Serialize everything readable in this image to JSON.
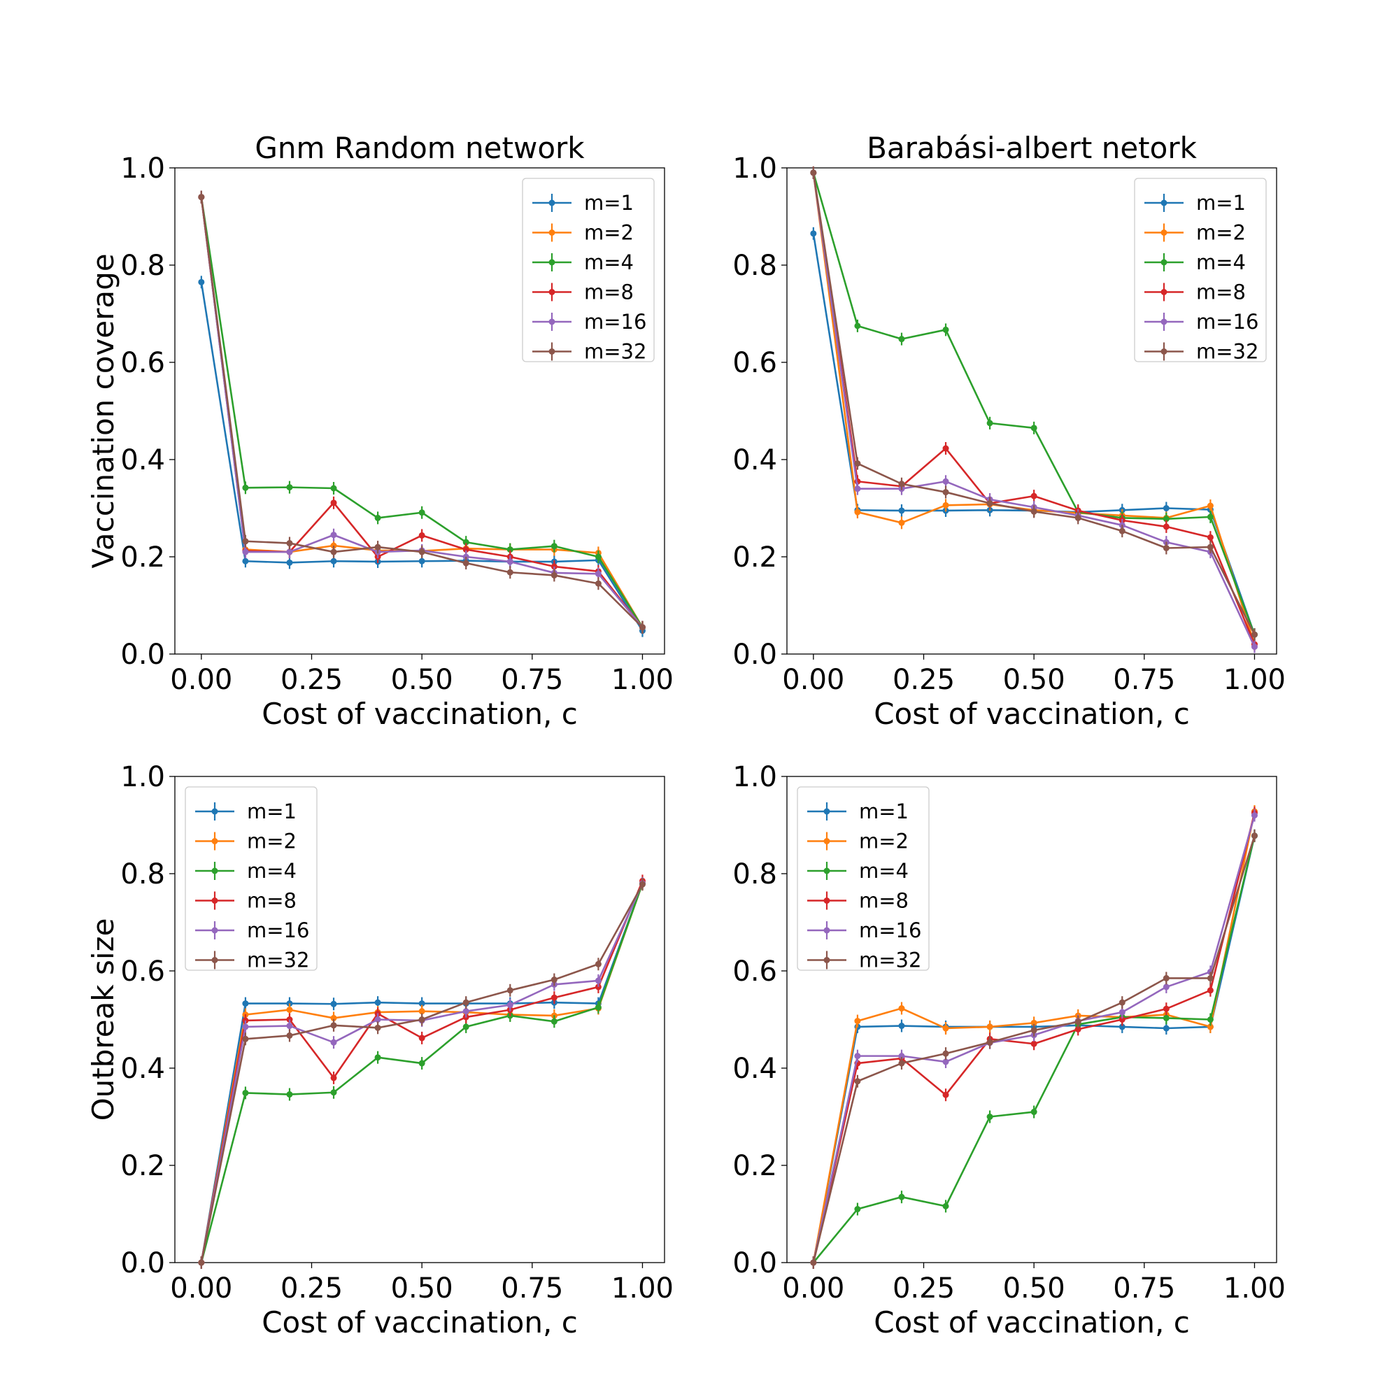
{
  "chart_data": [
    {
      "type": "line",
      "title": "Gnm Random network",
      "xlabel": "Cost of vaccination, c",
      "ylabel": "Vaccination coverage",
      "xlim": [
        -0.06,
        1.05
      ],
      "ylim": [
        0.0,
        1.0
      ],
      "xticks": [
        "0.00",
        "0.25",
        "0.50",
        "0.75",
        "1.00"
      ],
      "yticks": [
        "0.0",
        "0.2",
        "0.4",
        "0.6",
        "0.8",
        "1.0"
      ],
      "legend_position": "upper right",
      "x": [
        0.0,
        0.1,
        0.2,
        0.3,
        0.4,
        0.5,
        0.6,
        0.7,
        0.8,
        0.9,
        1.0
      ],
      "series": [
        {
          "name": "m=1",
          "color": "#1f77b4",
          "values": [
            0.765,
            0.191,
            0.188,
            0.191,
            0.19,
            0.191,
            0.192,
            0.19,
            0.19,
            0.193,
            0.048
          ]
        },
        {
          "name": "m=2",
          "color": "#ff7f0e",
          "values": [
            0.94,
            0.215,
            0.21,
            0.223,
            0.213,
            0.212,
            0.217,
            0.215,
            0.215,
            0.208,
            0.055
          ]
        },
        {
          "name": "m=4",
          "color": "#2ca02c",
          "values": [
            0.94,
            0.342,
            0.343,
            0.341,
            0.28,
            0.291,
            0.23,
            0.215,
            0.222,
            0.2,
            0.055
          ]
        },
        {
          "name": "m=8",
          "color": "#d62728",
          "values": [
            0.94,
            0.212,
            0.21,
            0.311,
            0.2,
            0.244,
            0.215,
            0.2,
            0.18,
            0.17,
            0.055
          ]
        },
        {
          "name": "m=16",
          "color": "#9467bd",
          "values": [
            0.94,
            0.21,
            0.21,
            0.245,
            0.21,
            0.213,
            0.2,
            0.19,
            0.167,
            0.165,
            0.055
          ]
        },
        {
          "name": "m=32",
          "color": "#8c564b",
          "values": [
            0.94,
            0.232,
            0.228,
            0.21,
            0.22,
            0.21,
            0.187,
            0.168,
            0.162,
            0.145,
            0.055
          ]
        }
      ]
    },
    {
      "type": "line",
      "title": "Barabási-albert netork",
      "xlabel": "Cost of vaccination, c",
      "ylabel": "",
      "xlim": [
        -0.06,
        1.05
      ],
      "ylim": [
        0.0,
        1.0
      ],
      "xticks": [
        "0.00",
        "0.25",
        "0.50",
        "0.75",
        "1.00"
      ],
      "yticks": [
        "0.0",
        "0.2",
        "0.4",
        "0.6",
        "0.8",
        "1.0"
      ],
      "legend_position": "upper right",
      "x": [
        0.0,
        0.1,
        0.2,
        0.3,
        0.4,
        0.5,
        0.6,
        0.7,
        0.8,
        0.9,
        1.0
      ],
      "series": [
        {
          "name": "m=1",
          "color": "#1f77b4",
          "values": [
            0.865,
            0.296,
            0.295,
            0.295,
            0.296,
            0.295,
            0.292,
            0.296,
            0.3,
            0.297,
            0.04
          ]
        },
        {
          "name": "m=2",
          "color": "#ff7f0e",
          "values": [
            0.99,
            0.292,
            0.27,
            0.306,
            0.308,
            0.296,
            0.29,
            0.285,
            0.28,
            0.305,
            0.02
          ]
        },
        {
          "name": "m=4",
          "color": "#2ca02c",
          "values": [
            0.99,
            0.675,
            0.648,
            0.667,
            0.475,
            0.465,
            0.292,
            0.28,
            0.278,
            0.282,
            0.04
          ]
        },
        {
          "name": "m=8",
          "color": "#d62728",
          "values": [
            0.99,
            0.355,
            0.345,
            0.423,
            0.31,
            0.325,
            0.295,
            0.275,
            0.262,
            0.24,
            0.02
          ]
        },
        {
          "name": "m=16",
          "color": "#9467bd",
          "values": [
            0.99,
            0.34,
            0.34,
            0.355,
            0.318,
            0.302,
            0.285,
            0.265,
            0.23,
            0.21,
            0.015
          ]
        },
        {
          "name": "m=32",
          "color": "#8c564b",
          "values": [
            0.99,
            0.392,
            0.35,
            0.333,
            0.31,
            0.293,
            0.28,
            0.253,
            0.218,
            0.22,
            0.04
          ]
        }
      ]
    },
    {
      "type": "line",
      "title": "",
      "xlabel": "Cost of vaccination, c",
      "ylabel": "Outbreak size",
      "xlim": [
        -0.06,
        1.05
      ],
      "ylim": [
        0.0,
        1.0
      ],
      "xticks": [
        "0.00",
        "0.25",
        "0.50",
        "0.75",
        "1.00"
      ],
      "yticks": [
        "0.0",
        "0.2",
        "0.4",
        "0.6",
        "0.8",
        "1.0"
      ],
      "legend_position": "upper left",
      "x": [
        0.0,
        0.1,
        0.2,
        0.3,
        0.4,
        0.5,
        0.6,
        0.7,
        0.8,
        0.9,
        1.0
      ],
      "series": [
        {
          "name": "m=1",
          "color": "#1f77b4",
          "values": [
            0.0,
            0.533,
            0.533,
            0.532,
            0.535,
            0.533,
            0.533,
            0.533,
            0.535,
            0.533,
            0.78
          ]
        },
        {
          "name": "m=2",
          "color": "#ff7f0e",
          "values": [
            0.0,
            0.51,
            0.52,
            0.503,
            0.515,
            0.517,
            0.515,
            0.51,
            0.508,
            0.523,
            0.78
          ]
        },
        {
          "name": "m=4",
          "color": "#2ca02c",
          "values": [
            0.0,
            0.349,
            0.346,
            0.35,
            0.422,
            0.41,
            0.485,
            0.508,
            0.496,
            0.525,
            0.78
          ]
        },
        {
          "name": "m=8",
          "color": "#d62728",
          "values": [
            0.0,
            0.498,
            0.5,
            0.38,
            0.512,
            0.462,
            0.505,
            0.52,
            0.545,
            0.567,
            0.785
          ]
        },
        {
          "name": "m=16",
          "color": "#9467bd",
          "values": [
            0.0,
            0.485,
            0.487,
            0.453,
            0.5,
            0.498,
            0.517,
            0.53,
            0.572,
            0.58,
            0.78
          ]
        },
        {
          "name": "m=32",
          "color": "#8c564b",
          "values": [
            0.0,
            0.46,
            0.467,
            0.488,
            0.483,
            0.5,
            0.535,
            0.56,
            0.582,
            0.614,
            0.778
          ]
        }
      ]
    },
    {
      "type": "line",
      "title": "",
      "xlabel": "Cost of vaccination, c",
      "ylabel": "",
      "xlim": [
        -0.06,
        1.05
      ],
      "ylim": [
        0.0,
        1.0
      ],
      "xticks": [
        "0.00",
        "0.25",
        "0.50",
        "0.75",
        "1.00"
      ],
      "yticks": [
        "0.0",
        "0.2",
        "0.4",
        "0.6",
        "0.8",
        "1.0"
      ],
      "legend_position": "upper left",
      "x": [
        0.0,
        0.1,
        0.2,
        0.3,
        0.4,
        0.5,
        0.6,
        0.7,
        0.8,
        0.9,
        1.0
      ],
      "series": [
        {
          "name": "m=1",
          "color": "#1f77b4",
          "values": [
            0.0,
            0.485,
            0.487,
            0.485,
            0.485,
            0.485,
            0.488,
            0.485,
            0.482,
            0.485,
            0.878
          ]
        },
        {
          "name": "m=2",
          "color": "#ff7f0e",
          "values": [
            0.0,
            0.497,
            0.523,
            0.482,
            0.485,
            0.493,
            0.508,
            0.505,
            0.51,
            0.485,
            0.928
          ]
        },
        {
          "name": "m=4",
          "color": "#2ca02c",
          "values": [
            0.0,
            0.11,
            0.135,
            0.116,
            0.3,
            0.31,
            0.49,
            0.505,
            0.503,
            0.5,
            0.878
          ]
        },
        {
          "name": "m=8",
          "color": "#d62728",
          "values": [
            0.0,
            0.41,
            0.42,
            0.345,
            0.46,
            0.45,
            0.48,
            0.5,
            0.522,
            0.56,
            0.925
          ]
        },
        {
          "name": "m=16",
          "color": "#9467bd",
          "values": [
            0.0,
            0.425,
            0.425,
            0.413,
            0.452,
            0.468,
            0.497,
            0.515,
            0.567,
            0.598,
            0.92
          ]
        },
        {
          "name": "m=32",
          "color": "#8c564b",
          "values": [
            0.0,
            0.373,
            0.41,
            0.43,
            0.453,
            0.478,
            0.495,
            0.535,
            0.585,
            0.585,
            0.878
          ]
        }
      ]
    }
  ]
}
